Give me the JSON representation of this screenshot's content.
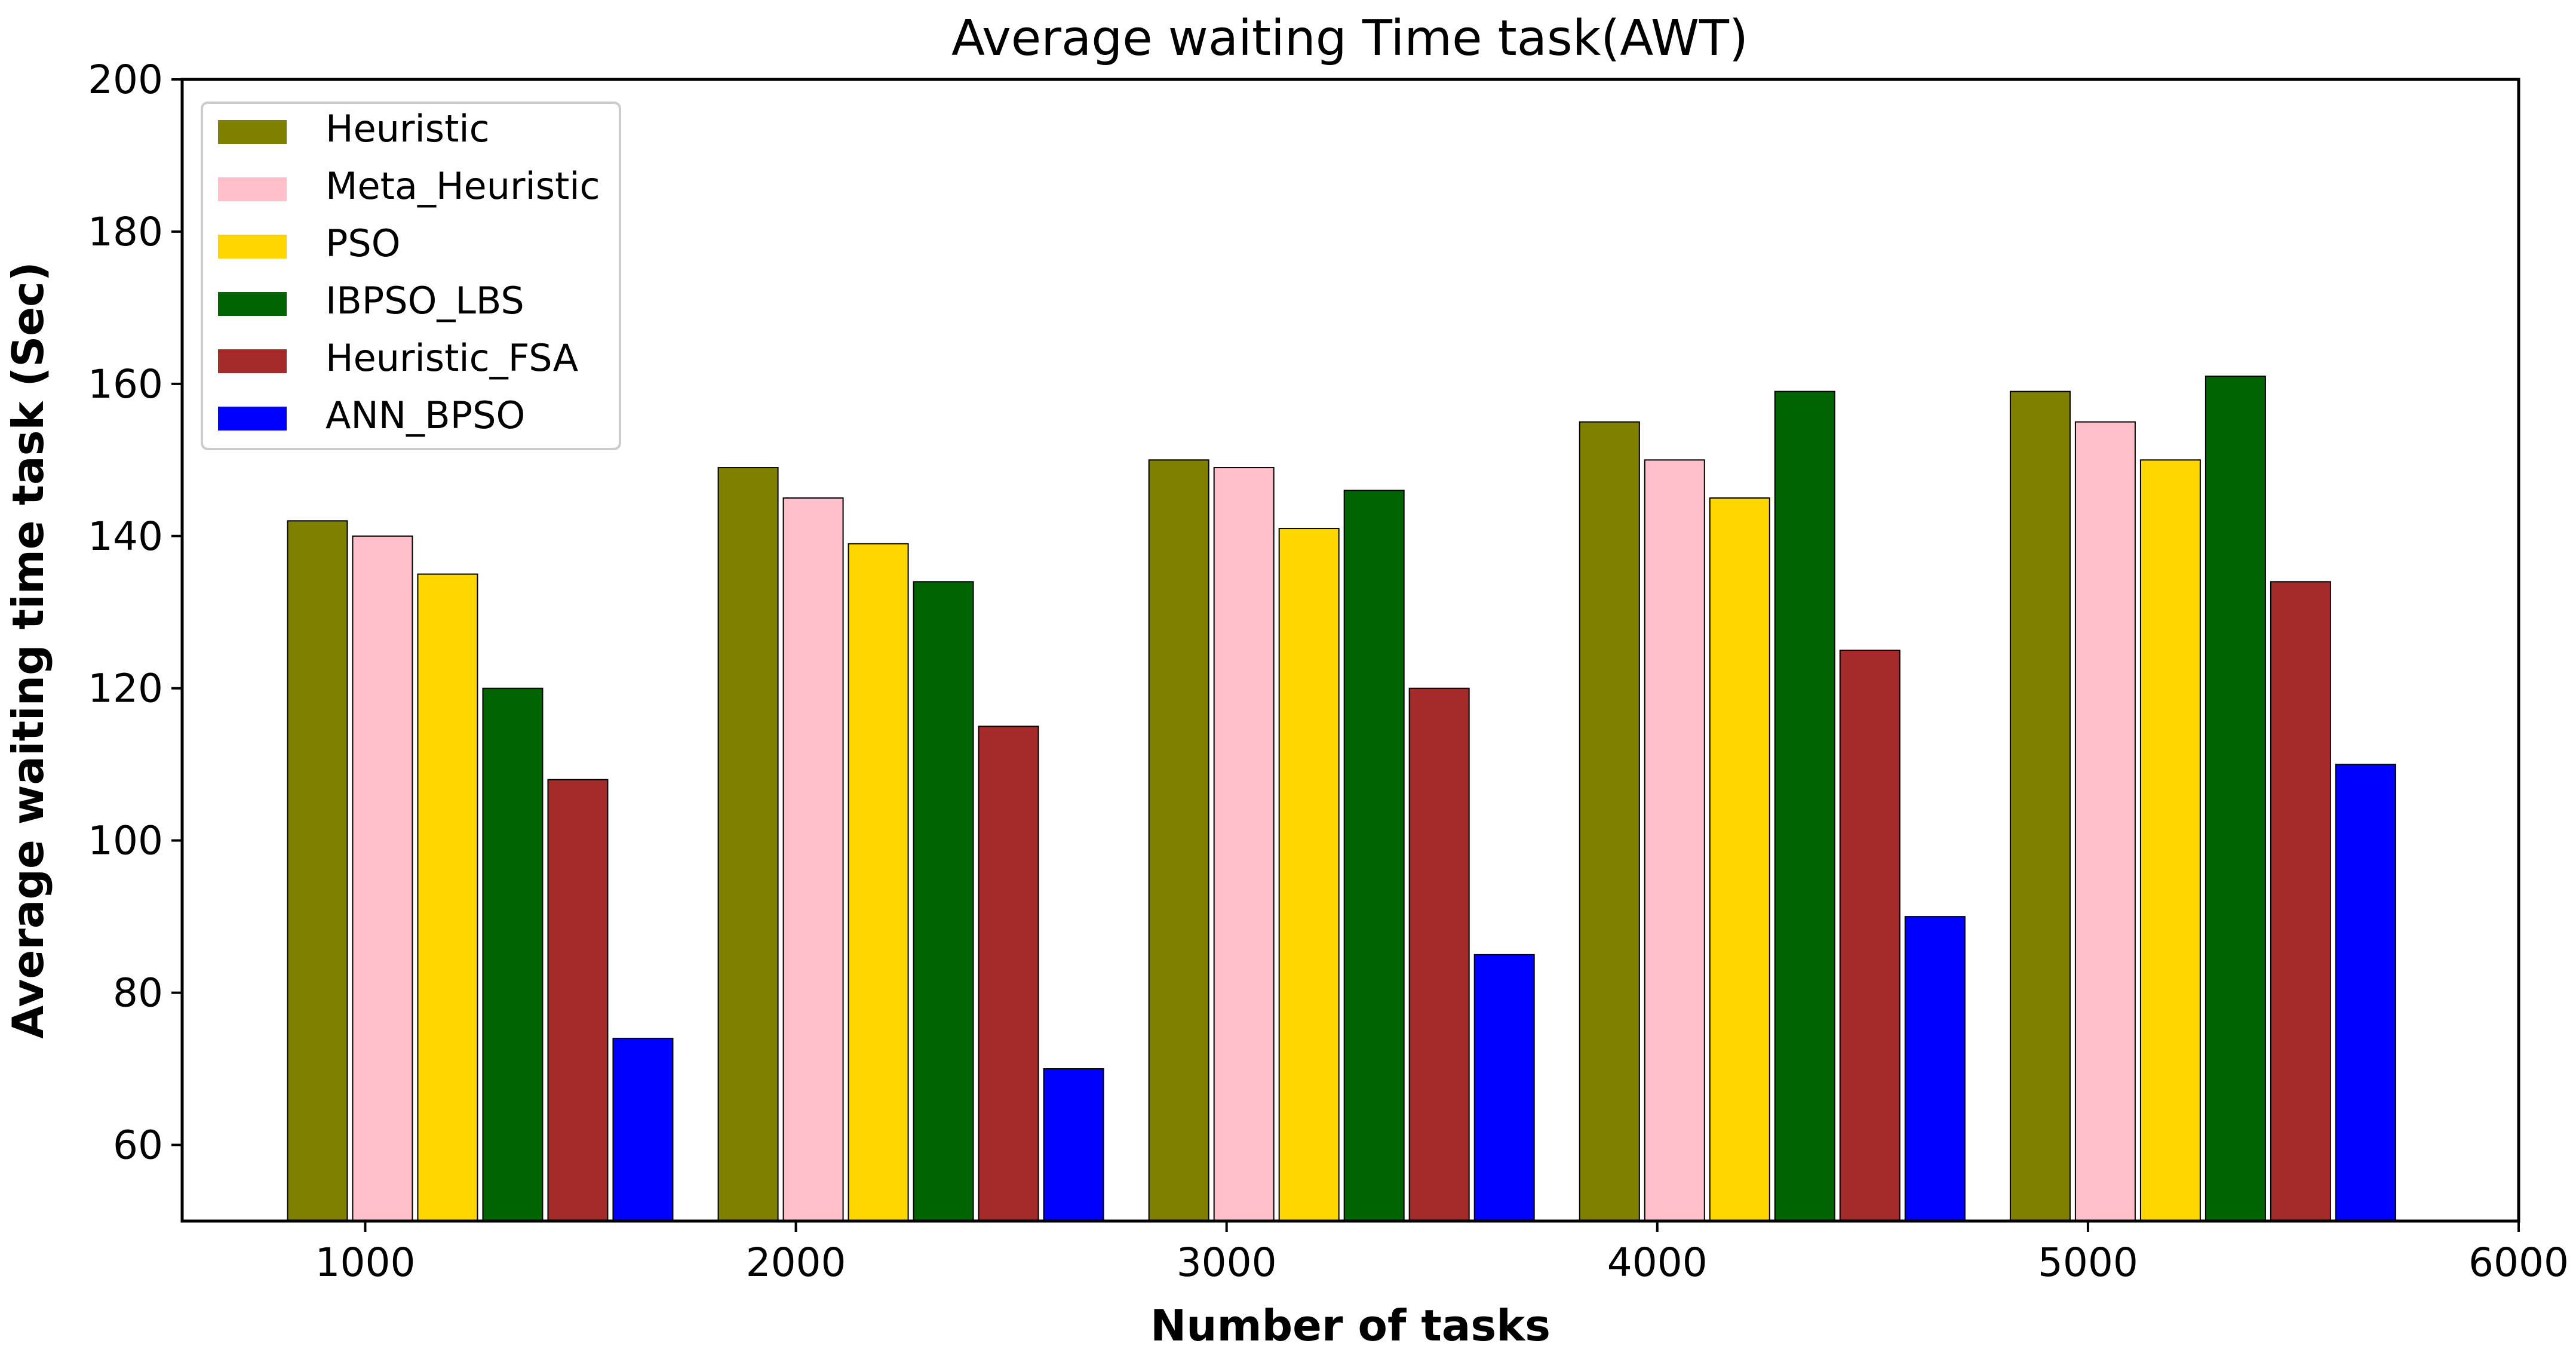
{
  "chart_data": {
    "type": "bar",
    "title": "Average waiting Time task(AWT)",
    "xlabel": "Number of tasks",
    "ylabel": "Average waiting time task (Sec)",
    "x": [
      1000,
      2000,
      3000,
      4000,
      5000
    ],
    "xlim": [
      575,
      6000
    ],
    "ylim": [
      50,
      200
    ],
    "xticks": [
      1000,
      2000,
      3000,
      4000,
      5000,
      6000
    ],
    "yticks": [
      60,
      80,
      100,
      120,
      140,
      160,
      180,
      200
    ],
    "grid": false,
    "legend_position": "top-left",
    "series": [
      {
        "name": "Heuristic",
        "color": "#808000",
        "values": [
          142,
          149,
          150,
          155,
          159
        ]
      },
      {
        "name": "Meta_Heuristic",
        "color": "#FFC0CB",
        "values": [
          140,
          145,
          149,
          150,
          155
        ]
      },
      {
        "name": "PSO",
        "color": "#FFD700",
        "values": [
          135,
          139,
          141,
          145,
          150
        ]
      },
      {
        "name": "IBPSO_LBS",
        "color": "#006400",
        "values": [
          120,
          134,
          146,
          159,
          161
        ]
      },
      {
        "name": "Heuristic_FSA",
        "color": "#A52A2A",
        "values": [
          108,
          115,
          120,
          125,
          134
        ]
      },
      {
        "name": "ANN_BPSO",
        "color": "#0000FF",
        "values": [
          74,
          70,
          85,
          90,
          110
        ]
      }
    ]
  }
}
